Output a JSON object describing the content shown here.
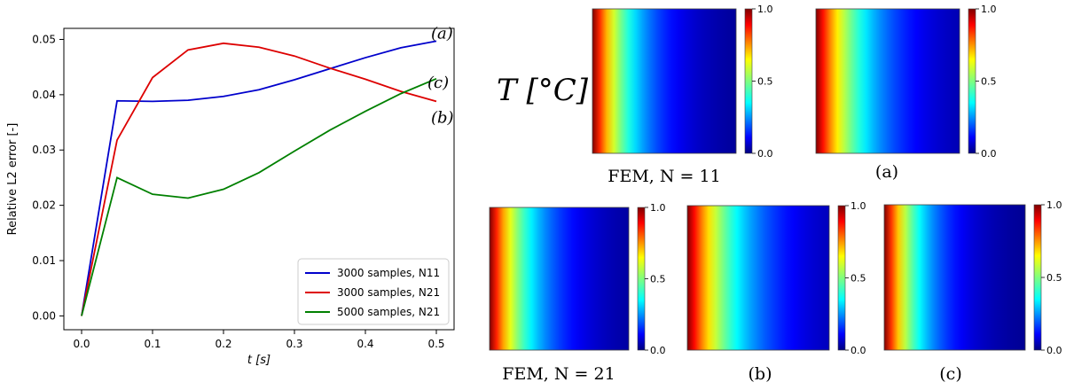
{
  "chart_data": [
    {
      "type": "line",
      "xlabel": "t [s]",
      "ylabel": "Relative L2 error [-]",
      "xlim": [
        -0.025,
        0.525
      ],
      "ylim": [
        -0.0025,
        0.052
      ],
      "xticks": [
        "0.0",
        "0.1",
        "0.2",
        "0.3",
        "0.4",
        "0.5"
      ],
      "yticks": [
        "0.00",
        "0.01",
        "0.02",
        "0.03",
        "0.04",
        "0.05"
      ],
      "grid": false,
      "legend_position": "lower-right",
      "x": [
        0.0,
        0.05,
        0.1,
        0.15,
        0.2,
        0.25,
        0.3,
        0.35,
        0.4,
        0.45,
        0.5
      ],
      "series": [
        {
          "name": "3000 samples, N11",
          "color": "#0000cc",
          "end_label": "(a)",
          "values": [
            0.0,
            0.0389,
            0.0388,
            0.039,
            0.0397,
            0.0409,
            0.0427,
            0.0447,
            0.0467,
            0.0485,
            0.0497
          ]
        },
        {
          "name": "3000 samples, N21",
          "color": "#dd0000",
          "end_label": "(b)",
          "values": [
            0.0,
            0.0318,
            0.0431,
            0.0481,
            0.0493,
            0.0486,
            0.047,
            0.0448,
            0.0428,
            0.0406,
            0.0388
          ]
        },
        {
          "name": "5000 samples, N21",
          "color": "#008000",
          "end_label": "(c)",
          "values": [
            0.0,
            0.025,
            0.022,
            0.0213,
            0.0229,
            0.0259,
            0.0298,
            0.0336,
            0.037,
            0.0402,
            0.0429
          ]
        }
      ]
    },
    {
      "type": "heatmap",
      "row_label": "T [°C]",
      "colorbar_ticks": [
        "0.0",
        "0.5",
        "1.0"
      ],
      "colorbar_range": [
        0.0,
        1.0
      ],
      "panels": [
        {
          "caption": "FEM, N = 11",
          "decay": 0.28,
          "roughness": 0.0
        },
        {
          "caption": "(a)",
          "decay": 0.34,
          "roughness": 0.02
        },
        {
          "caption": "FEM, N = 21",
          "decay": 0.3,
          "roughness": 0.0
        },
        {
          "caption": "(b)",
          "decay": 0.36,
          "roughness": 0.02
        },
        {
          "caption": "(c)",
          "decay": 0.26,
          "roughness": 0.03
        }
      ]
    }
  ]
}
